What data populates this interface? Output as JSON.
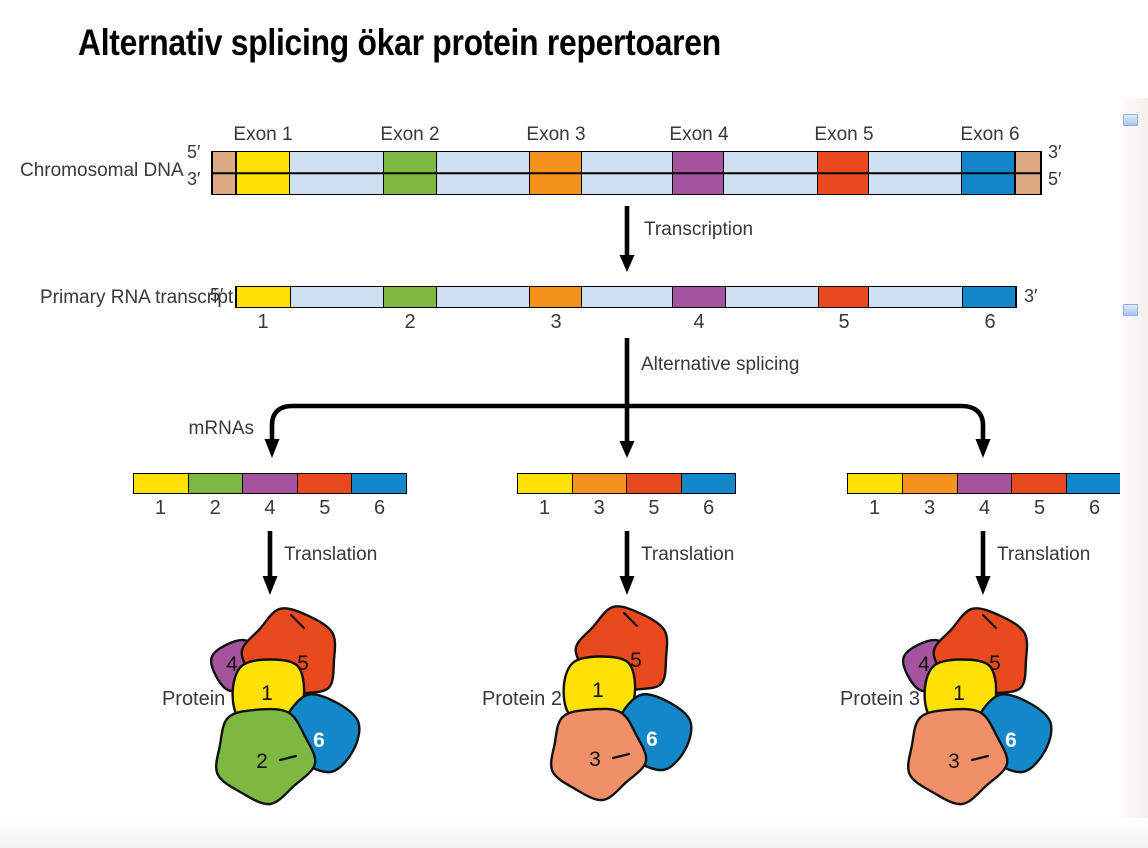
{
  "title": "Alternativ splicing ökar protein repertoaren",
  "palette": {
    "1": "#FFE106",
    "2": "#7CB842",
    "3": "#F6921E",
    "4": "#A4549F",
    "5": "#E8491F",
    "6": "#1387C8",
    "intron": "#CCE0F2",
    "dna_end": "#DBA982"
  },
  "protein_palette": {
    "1": "#FFE106",
    "2": "#7CB842",
    "3": "#F09068",
    "4": "#A4549F",
    "5": "#E8491F",
    "6": "#1387C8"
  },
  "dna_row": {
    "label": "Chromosomal DNA",
    "five_prime_left": "5′",
    "three_prime_left": "3′",
    "three_prime_right": "3′",
    "five_prime_right": "5′",
    "exons": [
      "Exon 1",
      "Exon 2",
      "Exon 3",
      "Exon 4",
      "Exon 5",
      "Exon 6"
    ]
  },
  "transcription": {
    "label": "Transcription"
  },
  "rna_row": {
    "label": "Primary RNA transcript",
    "five_prime": "5′",
    "three_prime": "3′",
    "numbers": [
      "1",
      "2",
      "3",
      "4",
      "5",
      "6"
    ]
  },
  "splicing": {
    "label": "Alternative splicing",
    "mrnas_label": "mRNAs"
  },
  "mrnas": [
    {
      "exons": [
        "1",
        "2",
        "4",
        "5",
        "6"
      ]
    },
    {
      "exons": [
        "1",
        "3",
        "5",
        "6"
      ]
    },
    {
      "exons": [
        "1",
        "3",
        "4",
        "5",
        "6"
      ]
    }
  ],
  "translation": {
    "label": "Translation"
  },
  "proteins": [
    {
      "label": "Protein 1",
      "domains": [
        "4",
        "5",
        "1",
        "2",
        "6"
      ]
    },
    {
      "label": "Protein 2",
      "domains": [
        "5",
        "1",
        "3",
        "6"
      ]
    },
    {
      "label": "Protein 3",
      "domains": [
        "4",
        "5",
        "1",
        "3",
        "6"
      ]
    }
  ],
  "ui": {
    "scroll_marker_color": "#AFC8F3"
  }
}
